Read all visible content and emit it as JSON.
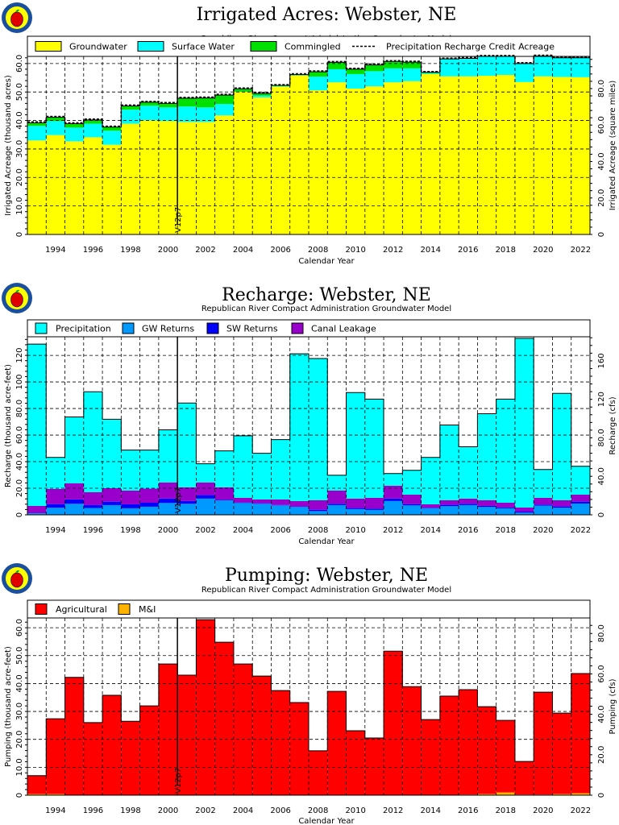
{
  "chart_data": [
    {
      "type": "bar",
      "stacked": true,
      "title": "Irrigated Acres: Webster, NE",
      "subtitle": "Republican River Compact Administration Groundwater Model",
      "xlabel": "Calendar Year",
      "ylabel": "Irrigated Acreage (thousand acres)",
      "ylabel_right": "Irrigated Acreage (square miles)",
      "ylim": [
        0,
        62.5
      ],
      "right_axis_factor": 1.5625,
      "y_ticks": [
        "0",
        "10.0",
        "20.0",
        "30.0",
        "40.0",
        "50.0",
        "60.0"
      ],
      "y_tick_values": [
        0,
        10,
        20,
        30,
        40,
        50,
        60
      ],
      "y_ticks_right": [
        "0",
        "20.0",
        "40.0",
        "60.0",
        "80.0"
      ],
      "y_tick_values_right": [
        0,
        20,
        40,
        60,
        80
      ],
      "grid": true,
      "legend_position": "top",
      "annotation": {
        "label": "V12p7",
        "x": 2000.5
      },
      "x": [
        1993,
        1994,
        1995,
        1996,
        1997,
        1998,
        1999,
        2000,
        2001,
        2002,
        2003,
        2004,
        2005,
        2006,
        2007,
        2008,
        2009,
        2010,
        2011,
        2012,
        2013,
        2014,
        2015,
        2016,
        2017,
        2018,
        2019,
        2020,
        2021,
        2022
      ],
      "x_tick_labels": [
        "1994",
        "1996",
        "1998",
        "2000",
        "2002",
        "2004",
        "2006",
        "2008",
        "2010",
        "2012",
        "2014",
        "2016",
        "2018",
        "2020",
        "2022"
      ],
      "series": [
        {
          "name": "Groundwater",
          "color": "#ffff00",
          "kind": "bar",
          "values": [
            33.0,
            34.9,
            32.7,
            34.1,
            31.5,
            38.9,
            40.1,
            39.8,
            39.5,
            39.5,
            41.8,
            50.1,
            48.1,
            51.9,
            55.8,
            50.6,
            53.4,
            51.2,
            52.0,
            53.4,
            53.8,
            56.3,
            55.5,
            55.5,
            55.7,
            56.0,
            53.5,
            55.5,
            55.3,
            55.2
          ]
        },
        {
          "name": "Surface Water",
          "color": "#00ffff",
          "kind": "bar",
          "values": [
            5.1,
            4.9,
            4.8,
            4.8,
            4.9,
            4.9,
            5.1,
            4.8,
            5.4,
            5.1,
            4.0,
            0.0,
            0.6,
            0.2,
            0.1,
            4.8,
            4.6,
            5.1,
            5.3,
            4.9,
            4.5,
            0.3,
            6.0,
            6.3,
            6.8,
            6.5,
            6.5,
            7.1,
            6.7,
            6.8
          ]
        },
        {
          "name": "Commingled",
          "color": "#00e000",
          "kind": "bar",
          "values": [
            1.1,
            1.3,
            1.4,
            1.3,
            1.3,
            1.3,
            1.2,
            1.4,
            2.9,
            3.3,
            3.1,
            1.0,
            0.8,
            0.2,
            0.2,
            1.7,
            2.4,
            1.7,
            2.2,
            2.4,
            2.2,
            0.3,
            0.1,
            0.0,
            0.0,
            0.0,
            0.0,
            0.0,
            0.0,
            0.0
          ]
        },
        {
          "name": "Precipitation Recharge Credit Acreage",
          "color": "#000000",
          "kind": "dashed-step",
          "values": [
            39.5,
            41.4,
            39.2,
            40.5,
            38.0,
            45.4,
            46.7,
            46.3,
            48.1,
            48.2,
            49.2,
            51.4,
            49.8,
            52.6,
            56.4,
            57.4,
            60.7,
            58.3,
            59.8,
            61.0,
            60.8,
            57.2,
            61.9,
            62.1,
            62.8,
            62.8,
            60.3,
            62.9,
            62.3,
            62.3
          ]
        }
      ]
    },
    {
      "type": "bar",
      "stacked": true,
      "title": "Recharge: Webster, NE",
      "subtitle": "Republican River Compact Administration Groundwater Model",
      "xlabel": "Calendar Year",
      "ylabel": "Recharge (thousand acre-feet)",
      "ylabel_right": "Recharge (cfs)",
      "ylim": [
        0,
        134
      ],
      "right_axis_factor": 1.3808,
      "y_ticks": [
        "0",
        "20.0",
        "40.0",
        "60.0",
        "80.0",
        "100",
        "120"
      ],
      "y_tick_values": [
        0,
        20,
        40,
        60,
        80,
        100,
        120
      ],
      "y_ticks_right": [
        "0",
        "40.0",
        "80.0",
        "120",
        "160"
      ],
      "y_tick_values_right": [
        0,
        40,
        80,
        120,
        160
      ],
      "grid": true,
      "legend_position": "top",
      "annotation": {
        "label": "V12p7",
        "x": 2000.5
      },
      "x": [
        1993,
        1994,
        1995,
        1996,
        1997,
        1998,
        1999,
        2000,
        2001,
        2002,
        2003,
        2004,
        2005,
        2006,
        2007,
        2008,
        2009,
        2010,
        2011,
        2012,
        2013,
        2014,
        2015,
        2016,
        2017,
        2018,
        2019,
        2020,
        2021,
        2022
      ],
      "x_tick_labels": [
        "1994",
        "1996",
        "1998",
        "2000",
        "2002",
        "2004",
        "2006",
        "2008",
        "2010",
        "2012",
        "2014",
        "2016",
        "2018",
        "2020",
        "2022"
      ],
      "series": [
        {
          "name": "GW Returns",
          "color": "#0099ff",
          "kind": "bar",
          "values": [
            1.2,
            5.3,
            8.3,
            5.1,
            7.3,
            4.9,
            6.1,
            8.9,
            8.3,
            12.2,
            10.8,
            8.9,
            8.3,
            7.1,
            5.9,
            2.8,
            7.3,
            4.3,
            3.7,
            10.4,
            7.1,
            4.9,
            6.5,
            7.3,
            5.9,
            4.9,
            1.6,
            6.9,
            5.3,
            8.5
          ]
        },
        {
          "name": "SW Returns",
          "color": "#0000ff",
          "kind": "bar",
          "values": [
            0.0,
            2.8,
            3.3,
            2.2,
            2.6,
            3.0,
            3.0,
            3.3,
            2.1,
            2.6,
            0.6,
            0.4,
            0.4,
            0.3,
            0.4,
            0.9,
            1.0,
            0.8,
            1.0,
            1.8,
            1.0,
            0.4,
            1.0,
            1.0,
            0.8,
            0.6,
            0.8,
            0.8,
            1.0,
            1.4
          ]
        },
        {
          "name": "Canal Leakage",
          "color": "#9900cc",
          "kind": "bar",
          "values": [
            5.5,
            11.4,
            12.2,
            9.8,
            10.2,
            10.4,
            10.6,
            12.2,
            10.3,
            9.6,
            9.3,
            3.5,
            2.9,
            4.2,
            4.1,
            7.3,
            10.0,
            7.1,
            8.1,
            9.7,
            7.1,
            2.6,
            3.5,
            3.9,
            4.3,
            3.6,
            3.1,
            5.1,
            4.7,
            5.3
          ]
        },
        {
          "name": "Precipitation",
          "color": "#00ffff",
          "kind": "bar",
          "values": [
            121.8,
            23.7,
            49.9,
            75.5,
            51.8,
            30.4,
            29.0,
            39.6,
            63.4,
            14.0,
            27.4,
            46.7,
            34.7,
            45.0,
            110.8,
            106.6,
            11.5,
            79.8,
            74.3,
            9.2,
            18.3,
            35.3,
            56.6,
            39.0,
            65.1,
            78.0,
            127.3,
            21.3,
            80.4,
            21.3
          ]
        }
      ],
      "legend_order": [
        "Precipitation",
        "GW Returns",
        "SW Returns",
        "Canal Leakage"
      ]
    },
    {
      "type": "bar",
      "stacked": true,
      "title": "Pumping: Webster, NE",
      "subtitle": "Republican River Compact Administration Groundwater Model",
      "xlabel": "Calendar Year",
      "ylabel": "Pumping (thousand acre-feet)",
      "ylabel_right": "Pumping (cfs)",
      "ylim": [
        0,
        63.5
      ],
      "right_axis_factor": 1.3808,
      "y_ticks": [
        "0",
        "10.0",
        "20.0",
        "30.0",
        "40.0",
        "50.0",
        "60.0"
      ],
      "y_tick_values": [
        0,
        10,
        20,
        30,
        40,
        50,
        60
      ],
      "y_ticks_right": [
        "0",
        "20.0",
        "40.0",
        "60.0",
        "80.0"
      ],
      "y_tick_values_right": [
        0,
        20,
        40,
        60,
        80
      ],
      "grid": true,
      "legend_position": "top",
      "annotation": {
        "label": "V12p7",
        "x": 2000.5
      },
      "x": [
        1993,
        1994,
        1995,
        1996,
        1997,
        1998,
        1999,
        2000,
        2001,
        2002,
        2003,
        2004,
        2005,
        2006,
        2007,
        2008,
        2009,
        2010,
        2011,
        2012,
        2013,
        2014,
        2015,
        2016,
        2017,
        2018,
        2019,
        2020,
        2021,
        2022
      ],
      "x_tick_labels": [
        "1994",
        "1996",
        "1998",
        "2000",
        "2002",
        "2004",
        "2006",
        "2008",
        "2010",
        "2012",
        "2014",
        "2016",
        "2018",
        "2020",
        "2022"
      ],
      "series": [
        {
          "name": "M&I",
          "color": "#ffb300",
          "kind": "bar",
          "values": [
            0.4,
            0.4,
            0.1,
            0.1,
            0.1,
            0.1,
            0.1,
            0.1,
            0.1,
            0.1,
            0.1,
            0.1,
            0.1,
            0.1,
            0.1,
            0.1,
            0.1,
            0.1,
            0.1,
            0.1,
            0.1,
            0.1,
            0.1,
            0.2,
            0.4,
            1.0,
            0.2,
            0.2,
            0.4,
            0.7
          ]
        },
        {
          "name": "Agricultural",
          "color": "#ff0000",
          "kind": "bar",
          "values": [
            6.6,
            27.0,
            42.1,
            25.9,
            35.7,
            26.4,
            31.9,
            46.9,
            42.9,
            62.8,
            54.7,
            46.9,
            42.6,
            37.4,
            33.1,
            15.8,
            37.1,
            23.0,
            20.4,
            51.5,
            38.8,
            27.0,
            35.4,
            37.6,
            31.3,
            25.8,
            11.9,
            36.7,
            29.0,
            42.9
          ]
        }
      ],
      "legend_order": [
        "Agricultural",
        "M&I"
      ]
    }
  ]
}
